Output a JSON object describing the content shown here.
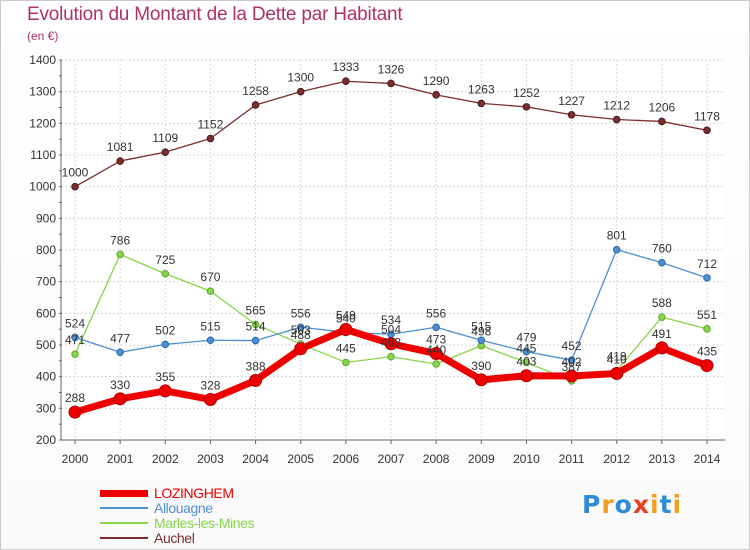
{
  "title": "Evolution du Montant de la Dette par Habitant",
  "subtitle": "(en €)",
  "logo": {
    "text": "Proxiti",
    "colors": [
      "#2e8bd6",
      "#f0a020",
      "#2e8bd6",
      "#e84020",
      "#f0a020",
      "#2e8bd6",
      "#f0a020"
    ]
  },
  "chart_data": {
    "type": "line",
    "title": "Evolution du Montant de la Dette par Habitant",
    "subtitle": "(en €)",
    "x": [
      "2000",
      "2001",
      "2002",
      "2003",
      "2004",
      "2005",
      "2006",
      "2007",
      "2008",
      "2009",
      "2010",
      "2011",
      "2012",
      "2013",
      "2014"
    ],
    "ylim": [
      200,
      1400
    ],
    "yticks": [
      "200",
      "300",
      "400",
      "500",
      "600",
      "700",
      "800",
      "900",
      "1000",
      "1100",
      "1200",
      "1300",
      "1400"
    ],
    "grid": true,
    "legend_position": "bottom-left",
    "series": [
      {
        "name": "LOZINGHEM",
        "color": "#ee0000",
        "values": [
          288,
          330,
          355,
          328,
          388,
          488,
          549,
          504,
          473,
          390,
          403,
          402,
          410,
          491,
          435
        ],
        "labels": [
          "288",
          "330",
          "355",
          "328",
          "388",
          "488",
          "549",
          "504",
          "473",
          "390",
          "403",
          "402",
          "410",
          "491",
          "435"
        ]
      },
      {
        "name": "Allouagne",
        "color": "#4d8fd1",
        "values": [
          524,
          477,
          502,
          515,
          514,
          556,
          540,
          534,
          556,
          515,
          479,
          452,
          801,
          760,
          712
        ],
        "labels": [
          "524",
          "477",
          "502",
          "515",
          "514",
          "556",
          "540",
          "534",
          "556",
          "515",
          "479",
          "452",
          "801",
          "760",
          "712"
        ]
      },
      {
        "name": "Marles-les-Mines",
        "color": "#88d44a",
        "values": [
          471,
          786,
          725,
          670,
          565,
          503,
          445,
          463,
          440,
          498,
          445,
          387,
          419,
          588,
          551
        ],
        "labels": [
          "471",
          "786",
          "725",
          "670",
          "565",
          "503",
          "445",
          "463",
          "440",
          "498",
          "445",
          "387",
          "419",
          "588",
          "551"
        ]
      },
      {
        "name": "Auchel",
        "color": "#7b2e2e",
        "values": [
          1000,
          1081,
          1109,
          1152,
          1258,
          1300,
          1333,
          1326,
          1290,
          1263,
          1252,
          1227,
          1212,
          1206,
          1178
        ],
        "labels": [
          "1000",
          "1081",
          "1109",
          "1152",
          "1258",
          "1300",
          "1333",
          "1326",
          "1290",
          "1263",
          "1252",
          "1227",
          "1212",
          "1206",
          "1178"
        ]
      }
    ]
  }
}
